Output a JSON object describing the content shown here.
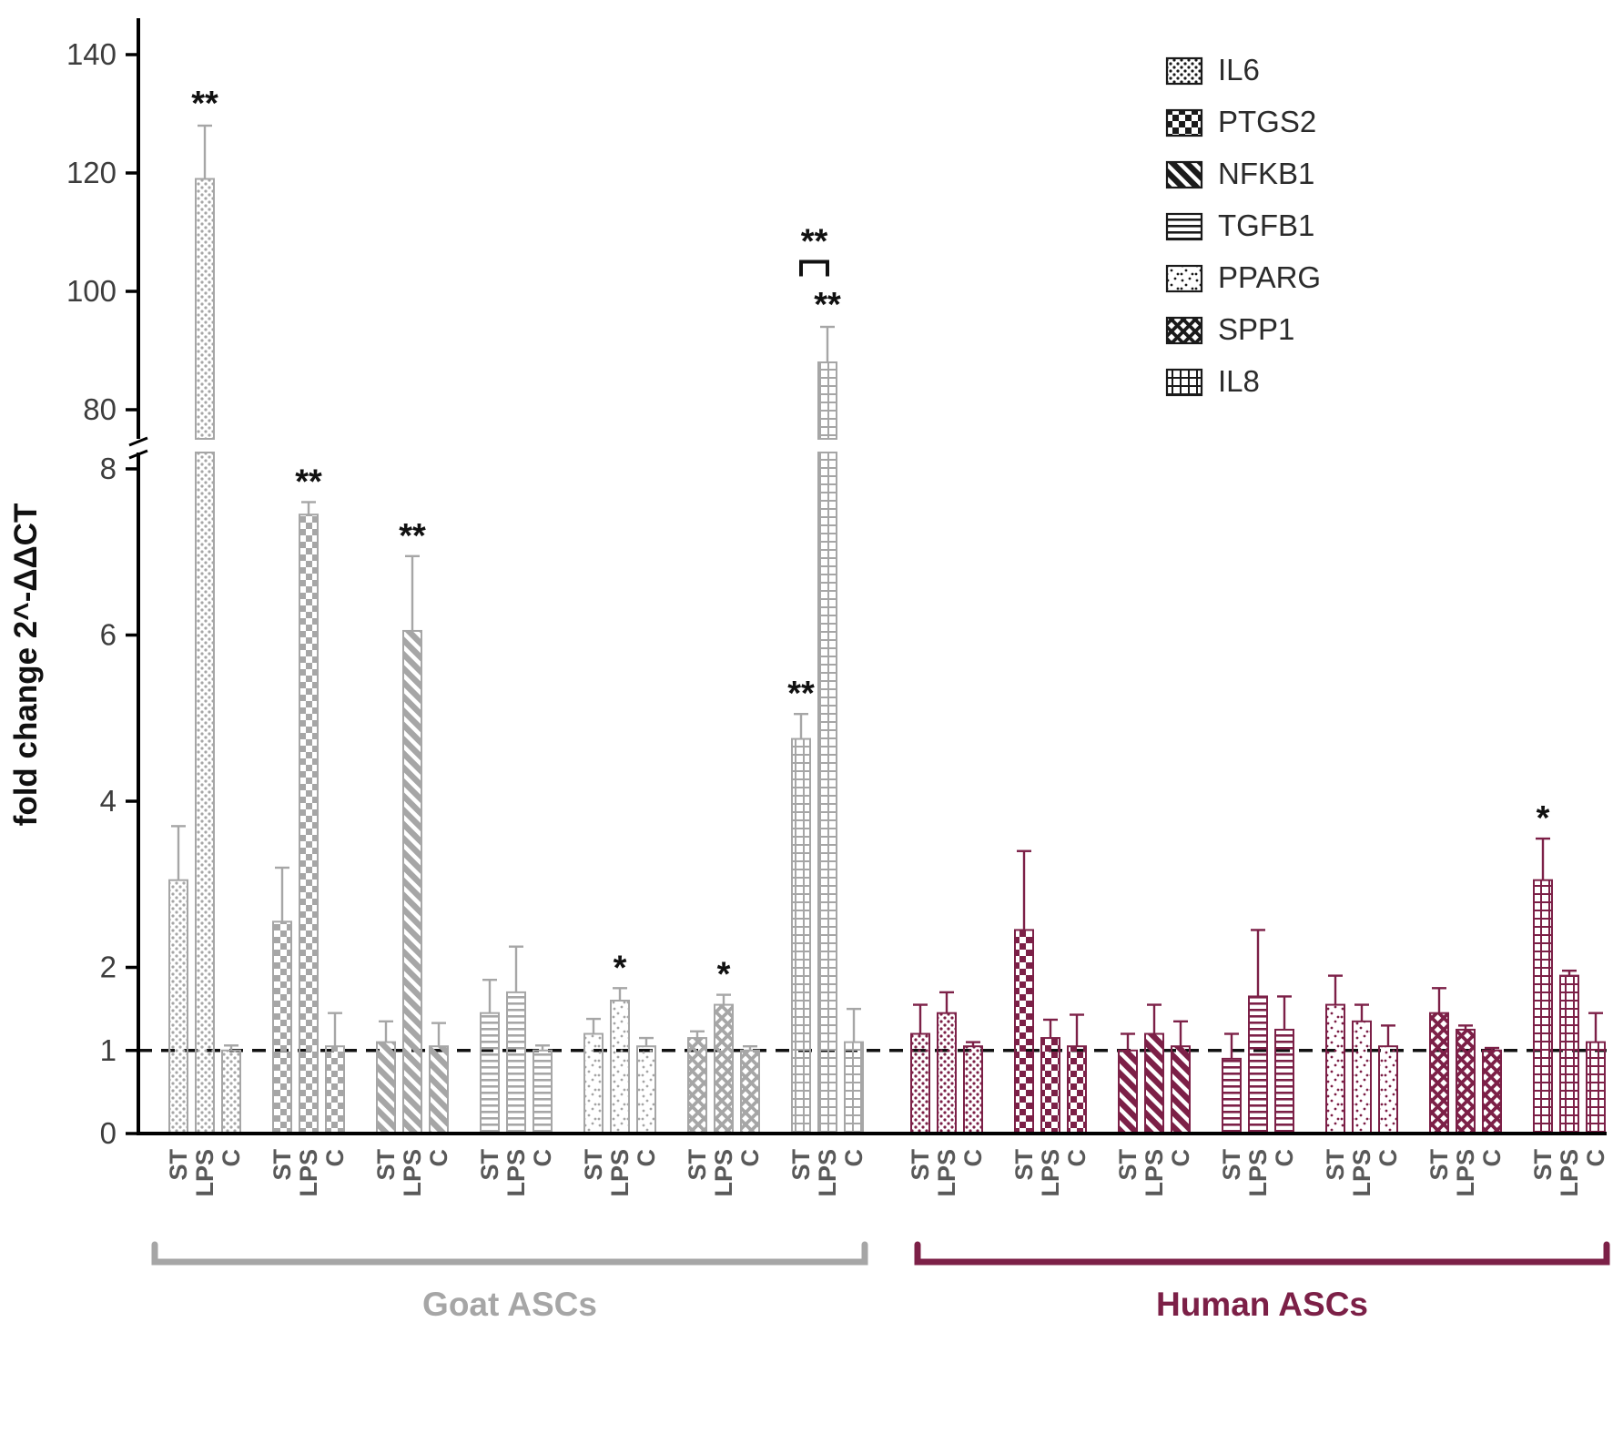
{
  "chart_data": {
    "type": "bar",
    "title": "",
    "ylabel": "fold change 2^-ΔΔCT",
    "x_conditions": [
      "ST",
      "LPS",
      "C"
    ],
    "axis": {
      "lower_range": [
        0,
        8
      ],
      "lower_ticks": [
        0,
        1,
        2,
        4,
        6,
        8
      ],
      "upper_range": [
        75,
        148
      ],
      "upper_ticks": [
        80,
        100,
        120,
        140
      ],
      "reference_line": 1,
      "broken_axis": true
    },
    "legend": [
      {
        "gene": "IL6",
        "pattern": "dots"
      },
      {
        "gene": "PTGS2",
        "pattern": "checker"
      },
      {
        "gene": "NFKB1",
        "pattern": "diag"
      },
      {
        "gene": "TGFB1",
        "pattern": "hlines"
      },
      {
        "gene": "PPARG",
        "pattern": "sparse"
      },
      {
        "gene": "SPP1",
        "pattern": "cross"
      },
      {
        "gene": "IL8",
        "pattern": "grid"
      }
    ],
    "series_groups": [
      {
        "species": "goat",
        "gene": "IL6",
        "pattern": "dots",
        "bars": [
          {
            "cond": "ST",
            "value": 3.05,
            "err": 0.65,
            "sig": ""
          },
          {
            "cond": "LPS",
            "value": 119,
            "err": 9,
            "sig": "**"
          },
          {
            "cond": "C",
            "value": 1.0,
            "err": 0.06,
            "sig": ""
          }
        ]
      },
      {
        "species": "goat",
        "gene": "PTGS2",
        "pattern": "checker",
        "bars": [
          {
            "cond": "ST",
            "value": 2.55,
            "err": 0.65,
            "sig": ""
          },
          {
            "cond": "LPS",
            "value": 7.45,
            "err": 0.15,
            "sig": "**"
          },
          {
            "cond": "C",
            "value": 1.05,
            "err": 0.4,
            "sig": ""
          }
        ]
      },
      {
        "species": "goat",
        "gene": "NFKB1",
        "pattern": "diag",
        "bars": [
          {
            "cond": "ST",
            "value": 1.1,
            "err": 0.25,
            "sig": ""
          },
          {
            "cond": "LPS",
            "value": 6.05,
            "err": 0.9,
            "sig": "**"
          },
          {
            "cond": "C",
            "value": 1.05,
            "err": 0.28,
            "sig": ""
          }
        ]
      },
      {
        "species": "goat",
        "gene": "TGFB1",
        "pattern": "hlines",
        "bars": [
          {
            "cond": "ST",
            "value": 1.45,
            "err": 0.4,
            "sig": ""
          },
          {
            "cond": "LPS",
            "value": 1.7,
            "err": 0.55,
            "sig": ""
          },
          {
            "cond": "C",
            "value": 1.0,
            "err": 0.06,
            "sig": ""
          }
        ]
      },
      {
        "species": "goat",
        "gene": "PPARG",
        "pattern": "sparse",
        "bars": [
          {
            "cond": "ST",
            "value": 1.2,
            "err": 0.18,
            "sig": ""
          },
          {
            "cond": "LPS",
            "value": 1.6,
            "err": 0.15,
            "sig": "*"
          },
          {
            "cond": "C",
            "value": 1.05,
            "err": 0.1,
            "sig": ""
          }
        ]
      },
      {
        "species": "goat",
        "gene": "SPP1",
        "pattern": "cross",
        "bars": [
          {
            "cond": "ST",
            "value": 1.15,
            "err": 0.08,
            "sig": ""
          },
          {
            "cond": "LPS",
            "value": 1.55,
            "err": 0.12,
            "sig": "*"
          },
          {
            "cond": "C",
            "value": 1.0,
            "err": 0.05,
            "sig": ""
          }
        ]
      },
      {
        "species": "goat",
        "gene": "IL8",
        "pattern": "grid",
        "bars": [
          {
            "cond": "ST",
            "value": 4.75,
            "err": 0.3,
            "sig": "**"
          },
          {
            "cond": "LPS",
            "value": 88,
            "err": 6,
            "sig": "**"
          },
          {
            "cond": "C",
            "value": 1.1,
            "err": 0.4,
            "sig": ""
          }
        ]
      },
      {
        "species": "human",
        "gene": "IL6",
        "pattern": "dots",
        "bars": [
          {
            "cond": "ST",
            "value": 1.2,
            "err": 0.35,
            "sig": ""
          },
          {
            "cond": "LPS",
            "value": 1.45,
            "err": 0.25,
            "sig": ""
          },
          {
            "cond": "C",
            "value": 1.05,
            "err": 0.05,
            "sig": ""
          }
        ]
      },
      {
        "species": "human",
        "gene": "PTGS2",
        "pattern": "checker",
        "bars": [
          {
            "cond": "ST",
            "value": 2.45,
            "err": 0.95,
            "sig": ""
          },
          {
            "cond": "LPS",
            "value": 1.15,
            "err": 0.22,
            "sig": ""
          },
          {
            "cond": "C",
            "value": 1.05,
            "err": 0.38,
            "sig": ""
          }
        ]
      },
      {
        "species": "human",
        "gene": "NFKB1",
        "pattern": "diag",
        "bars": [
          {
            "cond": "ST",
            "value": 1.0,
            "err": 0.2,
            "sig": ""
          },
          {
            "cond": "LPS",
            "value": 1.2,
            "err": 0.35,
            "sig": ""
          },
          {
            "cond": "C",
            "value": 1.05,
            "err": 0.3,
            "sig": ""
          }
        ]
      },
      {
        "species": "human",
        "gene": "TGFB1",
        "pattern": "hlines",
        "bars": [
          {
            "cond": "ST",
            "value": 0.9,
            "err": 0.3,
            "sig": ""
          },
          {
            "cond": "LPS",
            "value": 1.65,
            "err": 0.8,
            "sig": ""
          },
          {
            "cond": "C",
            "value": 1.25,
            "err": 0.4,
            "sig": ""
          }
        ]
      },
      {
        "species": "human",
        "gene": "PPARG",
        "pattern": "sparse",
        "bars": [
          {
            "cond": "ST",
            "value": 1.55,
            "err": 0.35,
            "sig": ""
          },
          {
            "cond": "LPS",
            "value": 1.35,
            "err": 0.2,
            "sig": ""
          },
          {
            "cond": "C",
            "value": 1.05,
            "err": 0.25,
            "sig": ""
          }
        ]
      },
      {
        "species": "human",
        "gene": "SPP1",
        "pattern": "cross",
        "bars": [
          {
            "cond": "ST",
            "value": 1.45,
            "err": 0.3,
            "sig": ""
          },
          {
            "cond": "LPS",
            "value": 1.25,
            "err": 0.05,
            "sig": ""
          },
          {
            "cond": "C",
            "value": 1.0,
            "err": 0.03,
            "sig": ""
          }
        ]
      },
      {
        "species": "human",
        "gene": "IL8",
        "pattern": "grid",
        "bars": [
          {
            "cond": "ST",
            "value": 3.05,
            "err": 0.5,
            "sig": "*"
          },
          {
            "cond": "LPS",
            "value": 1.9,
            "err": 0.06,
            "sig": ""
          },
          {
            "cond": "C",
            "value": 1.1,
            "err": 0.35,
            "sig": ""
          }
        ]
      }
    ],
    "comparison_bracket": {
      "species": "goat",
      "gene": "IL8",
      "between": [
        "ST",
        "LPS"
      ],
      "label": "**",
      "at_value": 105
    },
    "groups_axis": [
      {
        "label": "Goat ASCs",
        "color": "#a6a6a6"
      },
      {
        "label": "Human ASCs",
        "color": "#7c2047"
      }
    ],
    "colors": {
      "goat": "#a6a6a6",
      "human": "#7c2047",
      "legend": "#1a1a1a",
      "axis": "#000000",
      "tick_number": "#3d3d3d",
      "tick_label": "#595959",
      "significance": "#111111",
      "reference_line": "#111111"
    }
  }
}
